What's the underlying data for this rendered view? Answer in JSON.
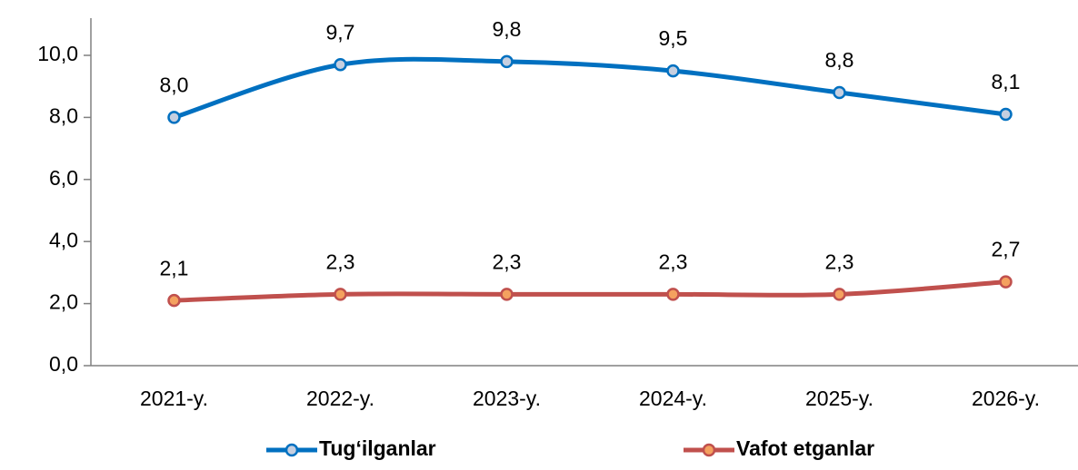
{
  "chart_data": {
    "type": "line",
    "categories": [
      "2021-y.",
      "2022-y.",
      "2023-y.",
      "2024-y.",
      "2025-y.",
      "2026-y."
    ],
    "series": [
      {
        "name": "Tug‘ilganlar",
        "color": "#0070c0",
        "marker_fill": "#c6cfe0",
        "values": [
          8.0,
          9.7,
          9.8,
          9.5,
          8.8,
          8.1
        ],
        "value_labels": [
          "8,0",
          "9,7",
          "9,8",
          "9,5",
          "8,8",
          "8,1"
        ]
      },
      {
        "name": "Vafot etganlar",
        "color": "#c0504d",
        "marker_fill": "#f4a15f",
        "values": [
          2.1,
          2.3,
          2.3,
          2.3,
          2.3,
          2.7
        ],
        "value_labels": [
          "2,1",
          "2,3",
          "2,3",
          "2,3",
          "2,3",
          "2,7"
        ]
      }
    ],
    "ylim": [
      0,
      10
    ],
    "yticks": [
      {
        "value": 0,
        "label": "0,0"
      },
      {
        "value": 2,
        "label": "2,0"
      },
      {
        "value": 4,
        "label": "4,0"
      },
      {
        "value": 6,
        "label": "6,0"
      },
      {
        "value": 8,
        "label": "8,0"
      },
      {
        "value": 10,
        "label": "10,0"
      }
    ],
    "smooth": true,
    "legend": "bottom"
  }
}
